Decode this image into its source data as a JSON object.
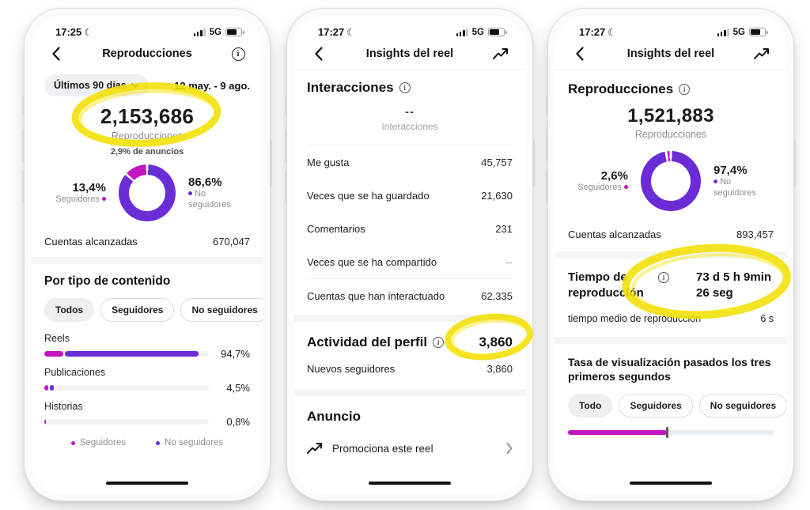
{
  "colors": {
    "purple": "#6a2cd5",
    "magenta": "#c315c0",
    "highlight": "#f2df05",
    "text_dark": "#1c1c1c",
    "text_gray": "#8e8e8e"
  },
  "icons": {
    "moon": "☾",
    "info": "i",
    "back": "chevron-left",
    "trend": "trending-arrow",
    "chevron_down": "chevron-down",
    "chevron_right": "chevron-right"
  },
  "phones": [
    {
      "status": {
        "time": "17:25",
        "network": "5G"
      },
      "nav": {
        "title": "Reproducciones"
      },
      "filter": {
        "chip": "Últimos 90 días",
        "range": "12 may. - 9 ago."
      },
      "hero": {
        "value": "2,153,686",
        "label": "Reproducciones",
        "note": "2,9% de anuncios"
      },
      "split": {
        "followers_value": 13.4,
        "followers_pct": "13,4%",
        "followers_label": "Seguidores",
        "non_pct": "86,6%",
        "non_label": "No seguidores"
      },
      "reached": {
        "label": "Cuentas alcanzadas",
        "value": "670,047"
      },
      "content_type": {
        "title": "Por tipo de contenido",
        "tabs": [
          {
            "label": "Todos"
          },
          {
            "label": "Seguidores"
          },
          {
            "label": "No seguidores"
          }
        ],
        "bars": [
          {
            "label": "Reels",
            "pct": "94,7%",
            "followers_w": 11.5,
            "non_w": 81.5
          },
          {
            "label": "Publicaciones",
            "pct": "4,5%",
            "followers_w": 2.4,
            "non_w": 2.4
          },
          {
            "label": "Historias",
            "pct": "0,8%",
            "followers_w": 1.2,
            "non_w": 0
          }
        ],
        "legend": [
          {
            "label": "Seguidores"
          },
          {
            "label": "No seguidores"
          }
        ]
      }
    },
    {
      "status": {
        "time": "17:27",
        "network": "5G"
      },
      "nav": {
        "title": "Insights del reel"
      },
      "interactions": {
        "title": "Interacciones",
        "empty_value": "--",
        "empty_label": "Interacciones",
        "rows": [
          {
            "label": "Me gusta",
            "value": "45,757"
          },
          {
            "label": "Veces que se ha guardado",
            "value": "21,630"
          },
          {
            "label": "Comentarios",
            "value": "231"
          },
          {
            "label": "Veces que se ha compartido",
            "value": "--"
          }
        ],
        "interacted": {
          "label": "Cuentas que han interactuado",
          "value": "62,335"
        }
      },
      "profile": {
        "title": "Actividad del perfil",
        "total": "3,860",
        "row": {
          "label": "Nuevos seguidores",
          "value": "3,860"
        }
      },
      "ad": {
        "title": "Anuncio",
        "cta": "Promociona este reel"
      }
    },
    {
      "status": {
        "time": "17:27",
        "network": "5G"
      },
      "nav": {
        "title": "Insights del reel"
      },
      "plays": {
        "title": "Reproducciones",
        "value": "1,521,883",
        "label": "Reproducciones",
        "split": {
          "followers_value": 2.6,
          "followers_pct": "2,6%",
          "followers_label": "Seguidores",
          "non_pct": "97,4%",
          "non_label": "No seguidores"
        },
        "reached": {
          "label": "Cuentas alcanzadas",
          "value": "893,457"
        }
      },
      "watch": {
        "title": "Tiempo de reproducción",
        "value": "73 d 5 h 9min 26 seg",
        "avg_label": "tiempo medio de reproducción",
        "avg_value": "6 s"
      },
      "rate": {
        "title": "Tasa de visualización pasados los tres primeros segundos",
        "tabs": [
          {
            "label": "Todo"
          },
          {
            "label": "Seguidores"
          },
          {
            "label": "No seguidores"
          }
        ],
        "slider_pct": 48
      }
    }
  ]
}
